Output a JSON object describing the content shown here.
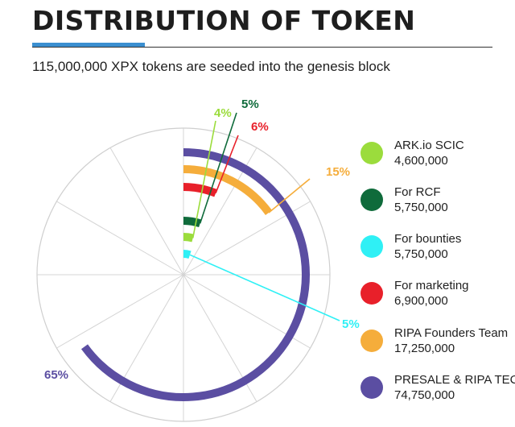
{
  "header": {
    "title": "DISTRIBUTION OF TOKEN",
    "subtitle": "115,000,000 XPX tokens are seeded into the genesis block"
  },
  "chart_data": {
    "type": "radial-bar",
    "title": "DISTRIBUTION OF TOKEN",
    "total": 115000000,
    "series": [
      {
        "name": "PRESALE & RIPA TEC",
        "value": 74750000,
        "percent_label": "65%",
        "color": "#5b4ea2"
      },
      {
        "name": "RIPA Founders Team",
        "value": 17250000,
        "percent_label": "15%",
        "color": "#f5ad3b"
      },
      {
        "name": "For marketing",
        "value": 6900000,
        "percent_label": "6%",
        "color": "#e8202a"
      },
      {
        "name": "For bounties",
        "value": 5750000,
        "percent_label": "5%",
        "color": "#2ff0f5"
      },
      {
        "name": "For RCF",
        "value": 5750000,
        "percent_label": "5%",
        "color": "#0f6b3b"
      },
      {
        "name": "ARK.io SCIC",
        "value": 4600000,
        "percent_label": "4%",
        "color": "#9bdc3c"
      }
    ],
    "grid": true
  },
  "legend": {
    "items": [
      {
        "name": "ARK.io SCIC",
        "value": "4,600,000",
        "color": "#9bdc3c"
      },
      {
        "name": "For RCF",
        "value": "5,750,000",
        "color": "#0f6b3b"
      },
      {
        "name": "For bounties",
        "value": "5,750,000",
        "color": "#2ff0f5"
      },
      {
        "name": "For marketing",
        "value": "6,900,000",
        "color": "#e8202a"
      },
      {
        "name": "RIPA Founders Team",
        "value": "17,250,000",
        "color": "#f5ad3b"
      },
      {
        "name": "PRESALE & RIPA TEC",
        "value": "74,750,000",
        "color": "#5b4ea2"
      }
    ]
  }
}
